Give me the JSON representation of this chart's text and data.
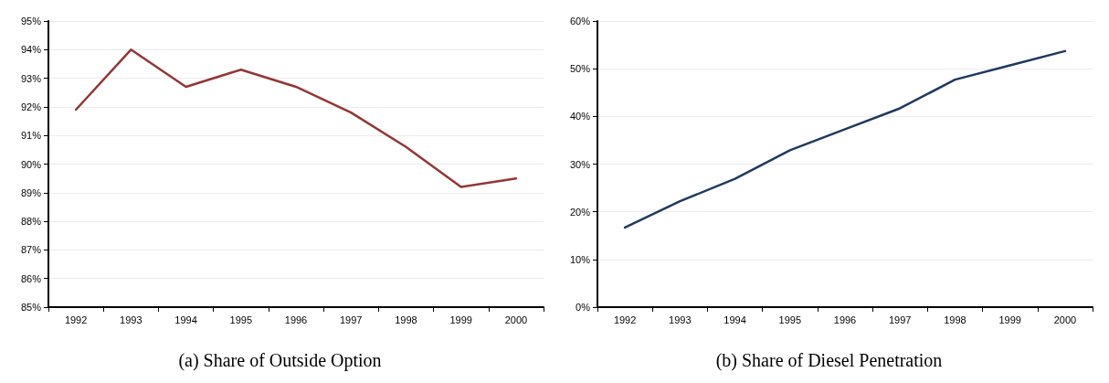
{
  "chart_data": [
    {
      "type": "line",
      "title": "(a) Share of Outside Option",
      "categories": [
        "1992",
        "1993",
        "1994",
        "1995",
        "1996",
        "1997",
        "1998",
        "1999",
        "2000"
      ],
      "series": [
        {
          "color": "#943634",
          "values": [
            91.9,
            94.0,
            92.7,
            93.3,
            92.7,
            91.8,
            90.6,
            89.2,
            89.5
          ]
        }
      ],
      "ylim": [
        85,
        95
      ],
      "yticks": [
        {
          "value": 85,
          "label": "85%"
        },
        {
          "value": 86,
          "label": "86%"
        },
        {
          "value": 87,
          "label": "87%"
        },
        {
          "value": 88,
          "label": "88%"
        },
        {
          "value": 89,
          "label": "89%"
        },
        {
          "value": 90,
          "label": "90%"
        },
        {
          "value": 91,
          "label": "91%"
        },
        {
          "value": 92,
          "label": "92%"
        },
        {
          "value": 93,
          "label": "93%"
        },
        {
          "value": 94,
          "label": "94%"
        },
        {
          "value": 95,
          "label": "95%"
        }
      ],
      "grid": "y",
      "marker": "none",
      "line_style": "solid"
    },
    {
      "type": "line",
      "title": "(b) Share of Diesel Penetration",
      "categories": [
        "1992",
        "1993",
        "1994",
        "1995",
        "1996",
        "1997",
        "1998",
        "1999",
        "2000"
      ],
      "series": [
        {
          "color": "#1f3a5f",
          "values": [
            16.7,
            22.2,
            26.9,
            32.9,
            37.3,
            41.7,
            47.7,
            50.7,
            53.7
          ]
        }
      ],
      "ylim": [
        0,
        60
      ],
      "yticks": [
        {
          "value": 0,
          "label": "0%"
        },
        {
          "value": 10,
          "label": "10%"
        },
        {
          "value": 20,
          "label": "20%"
        },
        {
          "value": 30,
          "label": "30%"
        },
        {
          "value": 40,
          "label": "40%"
        },
        {
          "value": 50,
          "label": "50%"
        },
        {
          "value": 60,
          "label": "60%"
        }
      ],
      "grid": "y",
      "marker": "none",
      "line_style": "solid"
    }
  ]
}
